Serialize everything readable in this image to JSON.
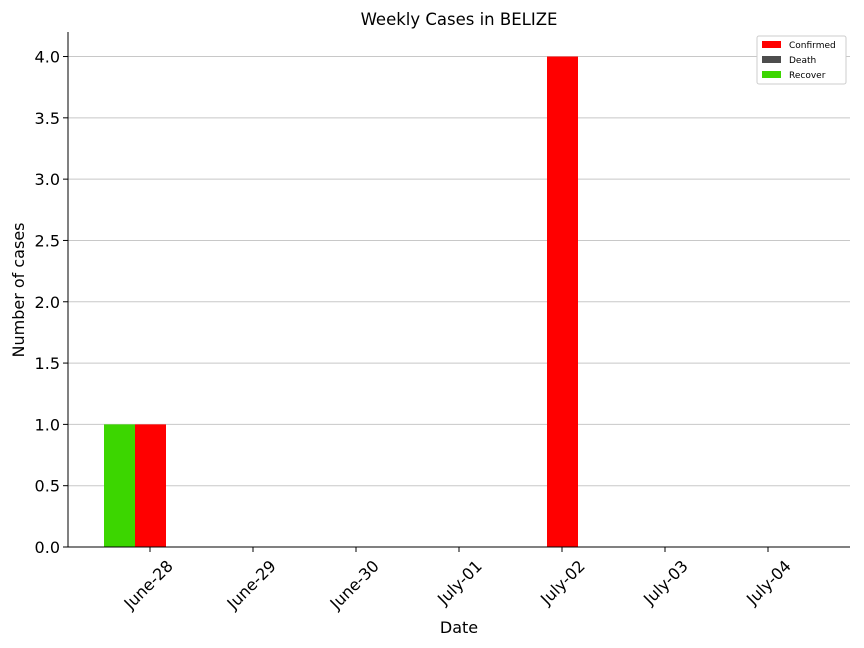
{
  "chart_data": {
    "type": "bar",
    "title": "Weekly Cases in BELIZE",
    "xlabel": "Date",
    "ylabel": "Number of cases",
    "categories": [
      "June-28",
      "June-29",
      "June-30",
      "July-01",
      "July-02",
      "July-03",
      "July-04"
    ],
    "series": [
      {
        "name": "Confirmed",
        "color": "#ff0000",
        "values": [
          1,
          0,
          0,
          0,
          4,
          0,
          0
        ]
      },
      {
        "name": "Death",
        "color": "#4d4d4d",
        "values": [
          0,
          0,
          0,
          0,
          0,
          0,
          0
        ]
      },
      {
        "name": "Recover",
        "color": "#3cd600",
        "values": [
          1,
          0,
          0,
          0,
          0,
          0,
          0
        ]
      }
    ],
    "ylim": [
      0,
      4.2
    ],
    "yticks": [
      "0.0",
      "0.5",
      "1.0",
      "1.5",
      "2.0",
      "2.5",
      "3.0",
      "3.5",
      "4.0"
    ],
    "grid": "horizontal",
    "legend_position": "top-right"
  }
}
